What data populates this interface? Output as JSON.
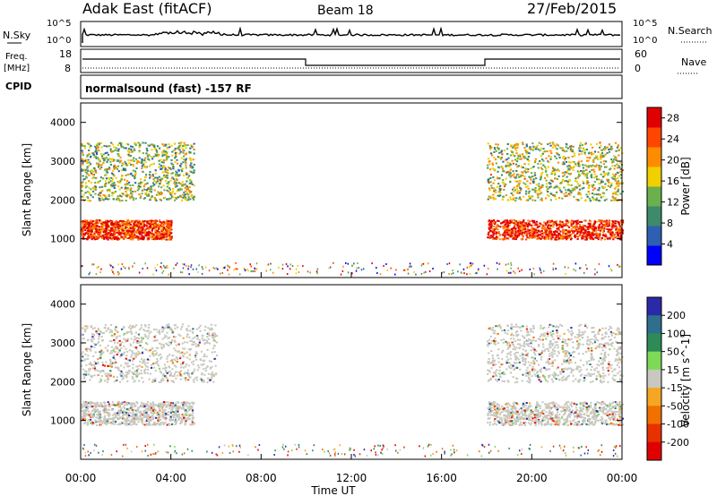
{
  "header": {
    "station": "Adak East (fitACF)",
    "beam": "Beam 18",
    "date": "27/Feb/2015"
  },
  "nsky_panel": {
    "left_label": "N.Sky",
    "right_label": "N.Search",
    "left_ticks": [
      "10^5",
      "10^0"
    ],
    "right_ticks": [
      "10^5",
      "10^0"
    ]
  },
  "freq_panel": {
    "left_label_line1": "Freq.",
    "left_label_line2": "[MHz]",
    "right_label": "Nave",
    "left_ticks": [
      "18",
      "8"
    ],
    "right_ticks": [
      "60",
      "0"
    ]
  },
  "cpid_panel": {
    "label": "CPID",
    "program": "normalsound (fast) -157 RF"
  },
  "colors": {
    "power_scale": [
      "#0000ff",
      "#2e5fb0",
      "#3d8b6a",
      "#6ab04c",
      "#f0d000",
      "#ff8c00",
      "#ff4500",
      "#e00000"
    ],
    "velocity_scale": [
      "#2a2aa8",
      "#2e6f8e",
      "#2e8b57",
      "#7ed957",
      "#c8c8c0",
      "#f5a623",
      "#f07000",
      "#e83000",
      "#e00000"
    ]
  },
  "chart_data": [
    {
      "type": "heatmap",
      "title": "Power",
      "ylabel": "Slant Range [km]",
      "xlabel": "Time UT",
      "y_ticks": [
        "1000",
        "2000",
        "3000",
        "4000"
      ],
      "ylim": [
        0,
        4500
      ],
      "colorbar_label": "Power [dB]",
      "colorbar_ticks": [
        "4",
        "8",
        "12",
        "16",
        "20",
        "24",
        "28"
      ],
      "colorbar_range": [
        0,
        30
      ],
      "regions": [
        {
          "t_start": 0.0,
          "t_end": 4.0,
          "range_km": [
            1000,
            1500
          ],
          "level_db": 26
        },
        {
          "t_start": 0.0,
          "t_end": 5.0,
          "range_km": [
            2000,
            3500
          ],
          "level_db": 14
        },
        {
          "t_start": 18.0,
          "t_end": 24.0,
          "range_km": [
            1000,
            1500
          ],
          "level_db": 27
        },
        {
          "t_start": 18.0,
          "t_end": 24.0,
          "range_km": [
            2000,
            3500
          ],
          "level_db": 15
        }
      ]
    },
    {
      "type": "heatmap",
      "title": "Velocity",
      "ylabel": "Slant Range [km]",
      "xlabel": "Time UT",
      "y_ticks": [
        "1000",
        "2000",
        "3000",
        "4000"
      ],
      "ylim": [
        0,
        4500
      ],
      "colorbar_label": "Velocity [m s^-1]",
      "colorbar_ticks": [
        "200",
        "100",
        "50",
        "15",
        "-15",
        "-50",
        "-100",
        "-200"
      ],
      "colorbar_range": [
        -250,
        250
      ]
    }
  ],
  "x_axis": {
    "ticks": [
      "00:00",
      "04:00",
      "08:00",
      "12:00",
      "16:00",
      "20:00",
      "00:00"
    ],
    "label": "Time UT"
  }
}
